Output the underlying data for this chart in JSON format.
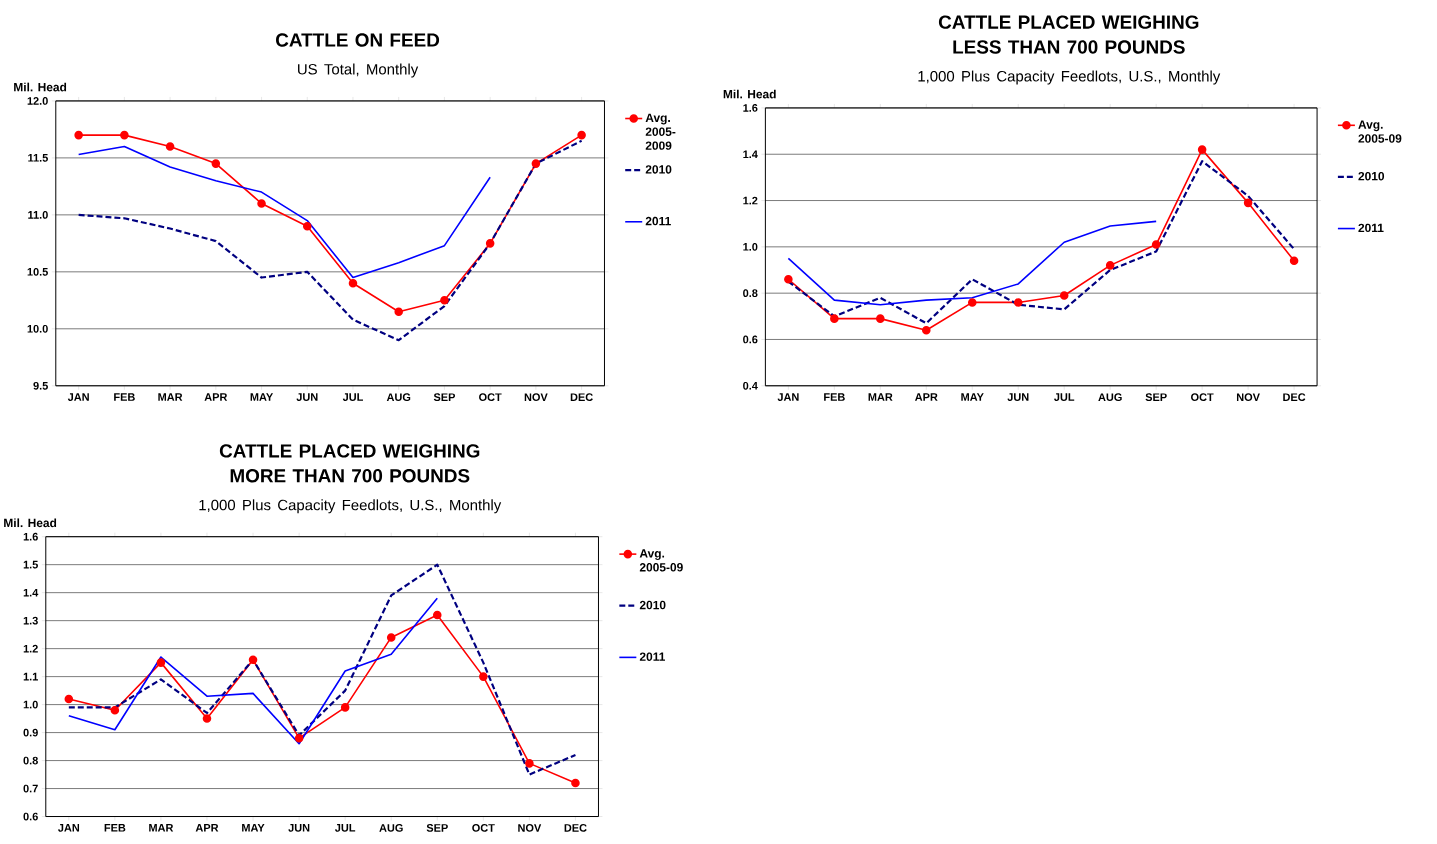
{
  "chart_data": [
    {
      "type": "line",
      "title": "CATTLE ON FEED",
      "subtitle": "US Total, Monthly",
      "ylabel": "Mil. Head",
      "categories": [
        "JAN",
        "FEB",
        "MAR",
        "APR",
        "MAY",
        "JUN",
        "JUL",
        "AUG",
        "SEP",
        "OCT",
        "NOV",
        "DEC"
      ],
      "series": [
        {
          "name": "Avg. 2005-2009",
          "color": "#ff0000",
          "marker": "circle",
          "line_style": "solid",
          "values": [
            11.7,
            11.7,
            11.6,
            11.45,
            11.1,
            10.9,
            10.4,
            10.15,
            10.25,
            10.75,
            11.45,
            11.7
          ]
        },
        {
          "name": "2010",
          "color": "#000080",
          "marker": "none",
          "line_style": "dashed",
          "values": [
            11.0,
            10.97,
            10.88,
            10.77,
            10.45,
            10.5,
            10.08,
            9.9,
            10.2,
            10.75,
            11.45,
            11.65
          ]
        },
        {
          "name": "2011",
          "color": "#0000ff",
          "marker": "none",
          "line_style": "solid",
          "values": [
            11.53,
            11.6,
            11.42,
            11.3,
            11.2,
            10.95,
            10.45,
            10.58,
            10.73,
            11.33,
            null,
            null
          ]
        }
      ],
      "ylim": [
        9.5,
        12.0
      ],
      "yticks": [
        {
          "value": 9.5,
          "label": "9.5"
        },
        {
          "value": 10.0,
          "label": "10.0"
        },
        {
          "value": 10.5,
          "label": "10.5"
        },
        {
          "value": 11.0,
          "label": "11.0"
        },
        {
          "value": 11.5,
          "label": "11.5"
        },
        {
          "value": 12.0,
          "label": "12.0"
        }
      ],
      "grid": "y",
      "legend": "right"
    },
    {
      "type": "line",
      "title": "CATTLE PLACED WEIGHING LESS THAN 700 POUNDS",
      "subtitle": "1,000 Plus Capacity Feedlots, U.S., Monthly",
      "ylabel": "Mil. Head",
      "categories": [
        "JAN",
        "FEB",
        "MAR",
        "APR",
        "MAY",
        "JUN",
        "JUL",
        "AUG",
        "SEP",
        "OCT",
        "NOV",
        "DEC"
      ],
      "series": [
        {
          "name": "Avg. 2005-09",
          "color": "#ff0000",
          "marker": "circle",
          "line_style": "solid",
          "values": [
            0.86,
            0.69,
            0.69,
            0.64,
            0.76,
            0.76,
            0.79,
            0.92,
            1.01,
            1.42,
            1.19,
            0.94
          ]
        },
        {
          "name": "2010",
          "color": "#000080",
          "marker": "none",
          "line_style": "dashed",
          "values": [
            0.85,
            0.7,
            0.78,
            0.67,
            0.86,
            0.75,
            0.73,
            0.9,
            0.98,
            1.37,
            1.22,
            0.99
          ]
        },
        {
          "name": "2011",
          "color": "#0000ff",
          "marker": "none",
          "line_style": "solid",
          "values": [
            0.95,
            0.77,
            0.75,
            0.77,
            0.78,
            0.84,
            1.02,
            1.09,
            1.11,
            null,
            null,
            null
          ]
        }
      ],
      "ylim": [
        0.4,
        1.6
      ],
      "yticks": [
        {
          "value": 0.4,
          "label": "0.4"
        },
        {
          "value": 0.6,
          "label": "0.6"
        },
        {
          "value": 0.8,
          "label": "0.8"
        },
        {
          "value": 1.0,
          "label": "1.0"
        },
        {
          "value": 1.2,
          "label": "1.2"
        },
        {
          "value": 1.4,
          "label": "1.4"
        },
        {
          "value": 1.6,
          "label": "1.6"
        }
      ],
      "grid": "y",
      "legend": "right"
    },
    {
      "type": "line",
      "title": "CATTLE PLACED WEIGHING MORE THAN 700 POUNDS",
      "subtitle": "1,000 Plus Capacity Feedlots, U.S., Monthly",
      "ylabel": "Mil. Head",
      "categories": [
        "JAN",
        "FEB",
        "MAR",
        "APR",
        "MAY",
        "JUN",
        "JUL",
        "AUG",
        "SEP",
        "OCT",
        "NOV",
        "DEC"
      ],
      "series": [
        {
          "name": "Avg. 2005-09",
          "color": "#ff0000",
          "marker": "circle",
          "line_style": "solid",
          "values": [
            1.02,
            0.98,
            1.15,
            0.95,
            1.16,
            0.88,
            0.99,
            1.24,
            1.32,
            1.1,
            0.79,
            0.72
          ]
        },
        {
          "name": "2010",
          "color": "#000080",
          "marker": "none",
          "line_style": "dashed",
          "values": [
            0.99,
            0.99,
            1.09,
            0.97,
            1.16,
            0.89,
            1.05,
            1.39,
            1.5,
            1.15,
            0.75,
            0.82
          ]
        },
        {
          "name": "2011",
          "color": "#0000ff",
          "marker": "none",
          "line_style": "solid",
          "values": [
            0.96,
            0.91,
            1.17,
            1.03,
            1.04,
            0.86,
            1.12,
            1.18,
            1.38,
            null,
            null,
            null
          ]
        }
      ],
      "ylim": [
        0.6,
        1.6
      ],
      "yticks": [
        {
          "value": 0.6,
          "label": "0.6"
        },
        {
          "value": 0.7,
          "label": "0.7"
        },
        {
          "value": 0.8,
          "label": "0.8"
        },
        {
          "value": 0.9,
          "label": "0.9"
        },
        {
          "value": 1.0,
          "label": "1.0"
        },
        {
          "value": 1.1,
          "label": "1.1"
        },
        {
          "value": 1.2,
          "label": "1.2"
        },
        {
          "value": 1.3,
          "label": "1.3"
        },
        {
          "value": 1.4,
          "label": "1.4"
        },
        {
          "value": 1.5,
          "label": "1.5"
        },
        {
          "value": 1.6,
          "label": "1.6"
        }
      ],
      "grid": "y",
      "legend": "right"
    }
  ]
}
